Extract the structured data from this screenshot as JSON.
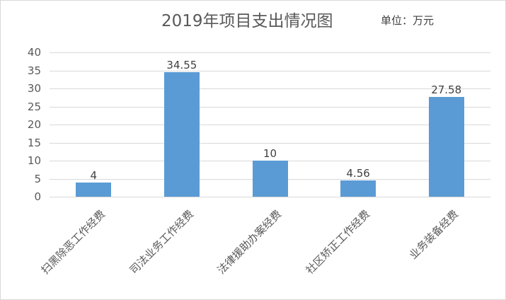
{
  "chart_data": {
    "type": "bar",
    "title": "2019年项目支出情况图",
    "unit_label": "单位：万元",
    "xlabel": "",
    "ylabel": "",
    "categories": [
      "扫黑除恶工作经费",
      "司法业务工作经费",
      "法律援助办案经费",
      "社区矫正工作经费",
      "业务装备经费"
    ],
    "values": [
      4,
      34.55,
      10,
      4.56,
      27.58
    ],
    "data_labels": [
      "4",
      "34.55",
      "10",
      "4.56",
      "27.58"
    ],
    "ylim": [
      0,
      40
    ],
    "yticks": [
      "0",
      "5",
      "10",
      "15",
      "20",
      "25",
      "30",
      "35",
      "40"
    ],
    "grid": true,
    "legend": "none",
    "bar_color": "#5b9bd5"
  }
}
